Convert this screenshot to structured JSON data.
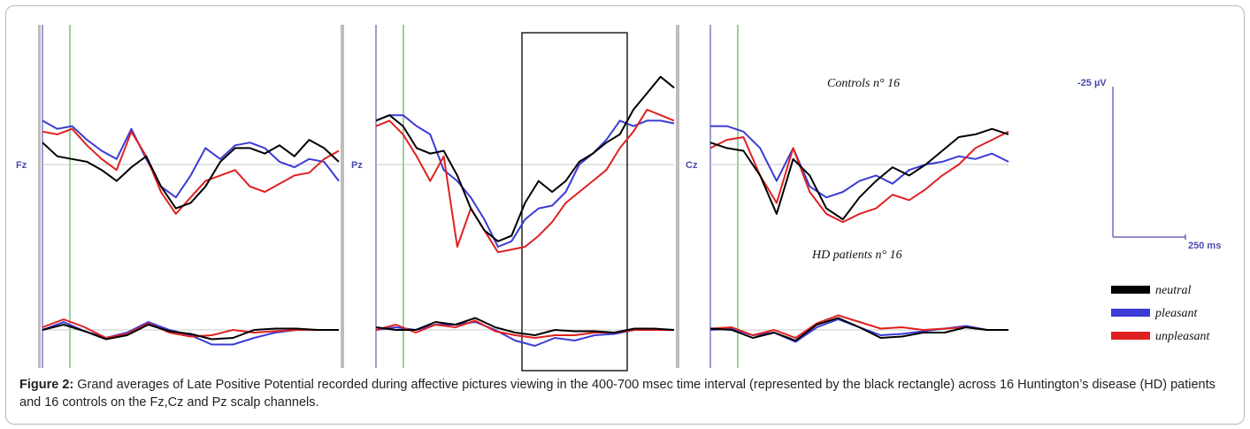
{
  "figure": {
    "caption_label": "Figure 2:",
    "caption_text": " Grand averages of Late Positive Potential recorded during affective pictures viewing in the 400-700 msec time interval (represented by the black rectangle) across 16 Huntington’s disease (HD) patients and 16 controls on the Fz,Cz and Pz scalp channels."
  },
  "chart_data": {
    "type": "line",
    "channels": [
      "Fz",
      "Pz",
      "Cz"
    ],
    "groups": [
      "Controls n° 16",
      "HD patients n° 16"
    ],
    "scale": {
      "amplitude_label": "-25 µV",
      "time_label": "250 ms"
    },
    "highlight": "400-700 msec time interval (black rectangle) on Pz",
    "legend": [
      {
        "name": "neutral",
        "color": "#000000"
      },
      {
        "name": "pleasant",
        "color": "#3b3bd6"
      },
      {
        "name": "unpleasant",
        "color": "#e02020"
      }
    ],
    "traces": {
      "Fz": {
        "controls": {
          "neutral": [
            0.4,
            0.15,
            0.1,
            0.05,
            -0.1,
            -0.3,
            -0.05,
            0.15,
            -0.4,
            -0.8,
            -0.7,
            -0.4,
            0.05,
            0.3,
            0.3,
            0.2,
            0.35,
            0.15,
            0.45,
            0.3,
            0.05
          ],
          "pleasant": [
            0.8,
            0.65,
            0.7,
            0.45,
            0.25,
            0.1,
            0.65,
            0.1,
            -0.4,
            -0.6,
            -0.2,
            0.3,
            0.1,
            0.35,
            0.4,
            0.3,
            0.05,
            -0.05,
            0.1,
            0.05,
            -0.3
          ],
          "unpleasant": [
            0.6,
            0.55,
            0.65,
            0.35,
            0.1,
            -0.1,
            0.6,
            0.15,
            -0.5,
            -0.9,
            -0.6,
            -0.3,
            -0.2,
            -0.1,
            -0.4,
            -0.5,
            -0.35,
            -0.2,
            -0.15,
            0.1,
            0.25
          ]
        },
        "hd": {
          "neutral": [
            0.0,
            0.2,
            -0.05,
            -0.35,
            -0.2,
            0.2,
            -0.05,
            -0.15,
            -0.35,
            -0.3,
            0.0,
            0.05,
            0.05,
            0.0,
            0.0
          ],
          "pleasant": [
            0.0,
            0.3,
            -0.05,
            -0.3,
            -0.1,
            0.3,
            0.0,
            -0.2,
            -0.55,
            -0.55,
            -0.3,
            -0.1,
            0.0,
            0.0,
            0.0
          ],
          "unpleasant": [
            0.1,
            0.4,
            0.1,
            -0.3,
            -0.15,
            0.25,
            -0.1,
            -0.25,
            -0.2,
            0.0,
            -0.1,
            -0.05,
            0.0,
            0.0,
            0.0
          ]
        }
      },
      "Pz": {
        "controls": {
          "neutral": [
            0.8,
            0.9,
            0.7,
            0.3,
            0.2,
            0.25,
            -0.2,
            -0.8,
            -1.2,
            -1.4,
            -1.3,
            -0.7,
            -0.3,
            -0.5,
            -0.3,
            0.05,
            0.2,
            0.4,
            0.55,
            1.0,
            1.3,
            1.6,
            1.4
          ],
          "pleasant": [
            0.8,
            0.9,
            0.9,
            0.7,
            0.55,
            -0.1,
            -0.3,
            -0.6,
            -1.0,
            -1.5,
            -1.4,
            -1.0,
            -0.8,
            -0.75,
            -0.5,
            0.0,
            0.2,
            0.45,
            0.8,
            0.7,
            0.8,
            0.8,
            0.75
          ],
          "unpleasant": [
            0.7,
            0.8,
            0.55,
            0.15,
            -0.3,
            0.15,
            -1.5,
            -0.8,
            -1.2,
            -1.6,
            -1.55,
            -1.5,
            -1.3,
            -1.05,
            -0.7,
            -0.5,
            -0.3,
            -0.1,
            0.3,
            0.6,
            1.0,
            0.9,
            0.8
          ]
        },
        "hd": {
          "neutral": [
            0.1,
            0.0,
            0.0,
            0.3,
            0.2,
            0.45,
            0.1,
            -0.1,
            -0.2,
            0.0,
            -0.05,
            -0.05,
            -0.1,
            0.05,
            0.05,
            0.0
          ],
          "pleasant": [
            0.0,
            0.1,
            0.0,
            0.2,
            0.2,
            0.3,
            0.0,
            -0.4,
            -0.6,
            -0.3,
            -0.4,
            -0.2,
            -0.15,
            0.0,
            0.0,
            0.0
          ],
          "unpleasant": [
            0.0,
            0.2,
            -0.1,
            0.2,
            0.1,
            0.35,
            -0.05,
            -0.2,
            -0.3,
            -0.2,
            -0.2,
            -0.1,
            -0.1,
            0.0,
            0.0,
            0.0
          ]
        }
      },
      "Cz": {
        "controls": {
          "neutral": [
            0.4,
            0.3,
            0.25,
            -0.2,
            -0.9,
            0.1,
            -0.2,
            -0.8,
            -1.0,
            -0.6,
            -0.3,
            -0.05,
            -0.2,
            0.0,
            0.25,
            0.5,
            0.55,
            0.65,
            0.55
          ],
          "pleasant": [
            0.7,
            0.7,
            0.6,
            0.3,
            -0.3,
            0.3,
            -0.4,
            -0.6,
            -0.5,
            -0.3,
            -0.2,
            -0.35,
            -0.1,
            0.0,
            0.05,
            0.15,
            0.1,
            0.2,
            0.05
          ],
          "unpleasant": [
            0.3,
            0.45,
            0.5,
            -0.2,
            -0.7,
            0.3,
            -0.5,
            -0.9,
            -1.05,
            -0.9,
            -0.8,
            -0.55,
            -0.65,
            -0.45,
            -0.2,
            0.0,
            0.3,
            0.45,
            0.6
          ]
        },
        "hd": {
          "neutral": [
            0.05,
            0.0,
            -0.3,
            -0.1,
            -0.4,
            0.2,
            0.45,
            0.1,
            -0.3,
            -0.25,
            -0.1,
            -0.1,
            0.1,
            0.0,
            0.0
          ],
          "pleasant": [
            0.0,
            0.05,
            -0.2,
            -0.1,
            -0.45,
            0.1,
            0.4,
            0.1,
            -0.2,
            -0.15,
            -0.05,
            0.05,
            0.15,
            0.0,
            0.0
          ],
          "unpleasant": [
            0.05,
            0.1,
            -0.2,
            0.0,
            -0.3,
            0.25,
            0.55,
            0.3,
            0.05,
            0.1,
            0.0,
            0.05,
            0.1,
            0.0,
            0.0
          ]
        }
      }
    }
  }
}
